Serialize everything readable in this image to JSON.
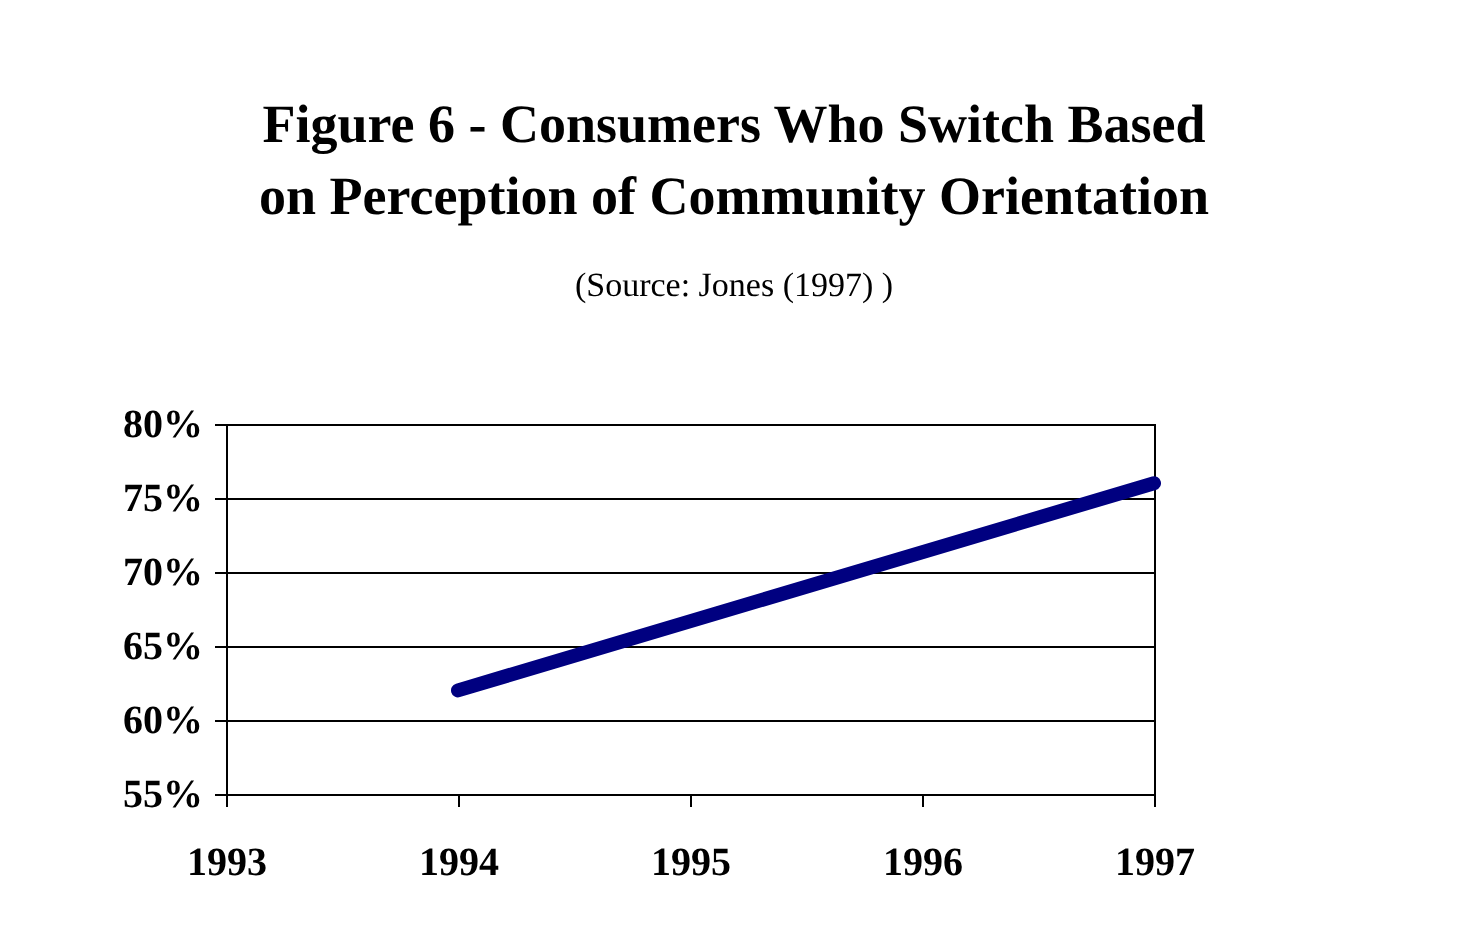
{
  "chart_data": {
    "type": "line",
    "title": "Figure 6 - Consumers Who Switch Based on Perception of Community Orientation",
    "subtitle": "(Source:  Jones (1997) )",
    "x": [
      1994,
      1997
    ],
    "series": [
      {
        "color": "#000080",
        "values": [
          62,
          76
        ]
      }
    ],
    "xlim": [
      1993,
      1997
    ],
    "xticks": [
      1993,
      1994,
      1995,
      1996,
      1997
    ],
    "ylim": [
      55,
      80
    ],
    "yticks": [
      {
        "value": 55,
        "label": "55%"
      },
      {
        "value": 60,
        "label": "60%"
      },
      {
        "value": 65,
        "label": "65%"
      },
      {
        "value": 70,
        "label": "70%"
      },
      {
        "value": 75,
        "label": "75%"
      },
      {
        "value": 80,
        "label": "80%"
      }
    ],
    "grid": "y",
    "legend": false
  }
}
